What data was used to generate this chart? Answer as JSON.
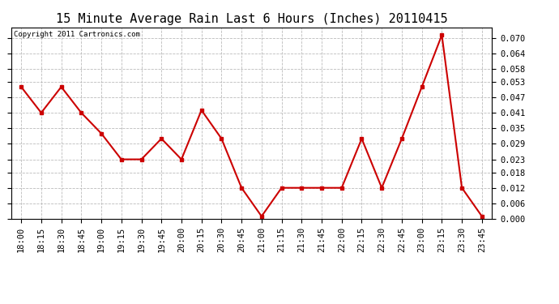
{
  "title": "15 Minute Average Rain Last 6 Hours (Inches) 20110415",
  "copyright": "Copyright 2011 Cartronics.com",
  "x_labels": [
    "18:00",
    "18:15",
    "18:30",
    "18:45",
    "19:00",
    "19:15",
    "19:30",
    "19:45",
    "20:00",
    "20:15",
    "20:30",
    "20:45",
    "21:00",
    "21:15",
    "21:30",
    "21:45",
    "22:00",
    "22:15",
    "22:30",
    "22:45",
    "23:00",
    "23:15",
    "23:30",
    "23:45"
  ],
  "y_values": [
    0.051,
    0.041,
    0.051,
    0.041,
    0.033,
    0.023,
    0.023,
    0.031,
    0.023,
    0.042,
    0.031,
    0.012,
    0.001,
    0.012,
    0.012,
    0.012,
    0.012,
    0.031,
    0.012,
    0.031,
    0.051,
    0.071,
    0.012,
    0.001
  ],
  "line_color": "#cc0000",
  "marker": "s",
  "marker_size": 3,
  "bg_color": "#ffffff",
  "plot_bg_color": "#ffffff",
  "grid_color": "#bbbbbb",
  "title_fontsize": 11,
  "tick_fontsize": 7.5,
  "copyright_fontsize": 6.5,
  "ylim": [
    0.0,
    0.074
  ],
  "yticks": [
    0.0,
    0.006,
    0.012,
    0.018,
    0.023,
    0.029,
    0.035,
    0.041,
    0.047,
    0.053,
    0.058,
    0.064,
    0.07
  ]
}
